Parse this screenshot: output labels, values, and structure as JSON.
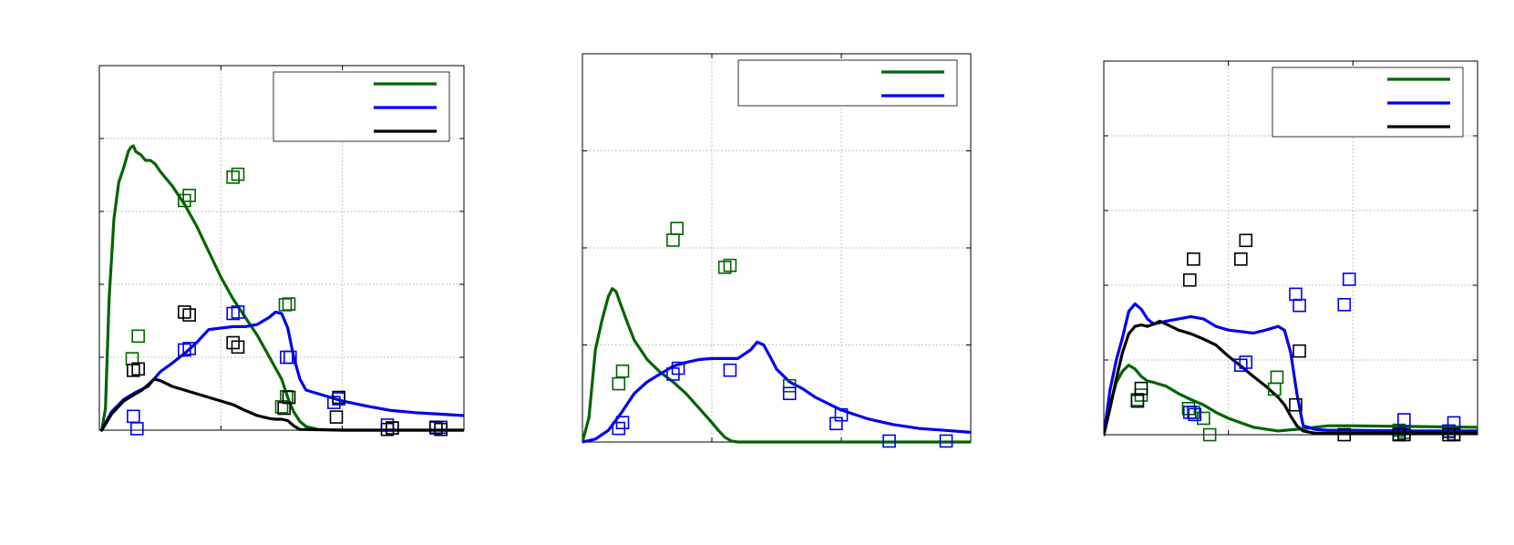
{
  "colors": {
    "green": "#006400",
    "blue": "#0000ee",
    "black": "#000000",
    "grid": "#b0b0b0"
  },
  "chart_data": [
    {
      "type": "line",
      "xlim": [
        0,
        3
      ],
      "ylim": [
        0,
        5
      ],
      "xticks": [
        1,
        2
      ],
      "yticks": [
        1,
        2,
        3,
        4
      ],
      "grid": true,
      "legend": "top-right",
      "series": [
        {
          "color": "green",
          "kind": "line",
          "x": [
            0.02,
            0.05,
            0.08,
            0.12,
            0.16,
            0.2,
            0.24,
            0.26,
            0.28,
            0.3,
            0.34,
            0.38,
            0.42,
            0.46,
            0.5,
            0.55,
            0.6,
            0.7,
            0.8,
            0.9,
            1.0,
            1.1,
            1.2,
            1.3,
            1.35,
            1.4,
            1.45,
            1.5,
            1.53,
            1.56,
            1.6,
            1.65,
            1.7,
            1.8,
            2.0,
            2.5,
            3.0
          ],
          "y": [
            0.0,
            0.3,
            1.8,
            2.9,
            3.4,
            3.6,
            3.83,
            3.88,
            3.9,
            3.82,
            3.78,
            3.7,
            3.7,
            3.65,
            3.55,
            3.45,
            3.35,
            3.1,
            2.8,
            2.45,
            2.1,
            1.8,
            1.55,
            1.3,
            1.15,
            1.0,
            0.85,
            0.7,
            0.55,
            0.4,
            0.25,
            0.12,
            0.05,
            0.01,
            0.0,
            0.0,
            0.0
          ]
        },
        {
          "color": "blue",
          "kind": "line",
          "x": [
            0.02,
            0.1,
            0.2,
            0.3,
            0.4,
            0.5,
            0.6,
            0.7,
            0.8,
            0.9,
            1.0,
            1.1,
            1.2,
            1.3,
            1.4,
            1.45,
            1.5,
            1.55,
            1.6,
            1.65,
            1.7,
            1.8,
            1.9,
            2.0,
            2.2,
            2.4,
            2.6,
            2.8,
            3.0
          ],
          "y": [
            0.0,
            0.25,
            0.42,
            0.52,
            0.6,
            0.8,
            0.92,
            1.05,
            1.2,
            1.38,
            1.4,
            1.42,
            1.42,
            1.45,
            1.55,
            1.62,
            1.6,
            1.4,
            1.0,
            0.7,
            0.55,
            0.5,
            0.45,
            0.4,
            0.33,
            0.27,
            0.24,
            0.22,
            0.2
          ]
        },
        {
          "color": "black",
          "kind": "line",
          "x": [
            0.02,
            0.1,
            0.2,
            0.3,
            0.35,
            0.4,
            0.45,
            0.5,
            0.6,
            0.7,
            0.8,
            0.9,
            1.0,
            1.1,
            1.2,
            1.3,
            1.4,
            1.45,
            1.5,
            1.55,
            1.6,
            1.65,
            2.0,
            2.5,
            3.0
          ],
          "y": [
            0.0,
            0.22,
            0.4,
            0.5,
            0.55,
            0.62,
            0.7,
            0.68,
            0.6,
            0.55,
            0.5,
            0.45,
            0.4,
            0.35,
            0.27,
            0.2,
            0.16,
            0.15,
            0.15,
            0.13,
            0.06,
            0.01,
            0.0,
            0.0,
            0.0
          ]
        },
        {
          "color": "green",
          "kind": "markers",
          "x": [
            0.27,
            0.32,
            0.7,
            0.74,
            1.1,
            1.14,
            1.53,
            1.56,
            1.5,
            1.54
          ],
          "y": [
            0.98,
            1.29,
            3.15,
            3.22,
            3.47,
            3.51,
            1.72,
            1.73,
            0.32,
            0.46
          ]
        },
        {
          "color": "blue",
          "kind": "markers",
          "x": [
            0.28,
            0.31,
            0.7,
            0.74,
            1.1,
            1.14,
            1.54,
            1.57,
            1.93,
            1.97,
            2.37,
            2.41,
            2.77,
            2.81
          ],
          "y": [
            0.19,
            0.02,
            1.1,
            1.12,
            1.6,
            1.62,
            1.0,
            1.0,
            0.38,
            0.43,
            0.07,
            0.03,
            0.03,
            0.04
          ]
        },
        {
          "color": "black",
          "kind": "markers",
          "x": [
            0.28,
            0.32,
            0.7,
            0.74,
            1.1,
            1.14,
            1.52,
            1.56,
            1.95,
            1.97,
            2.37,
            2.41,
            2.77,
            2.81
          ],
          "y": [
            0.82,
            0.84,
            1.62,
            1.58,
            1.2,
            1.14,
            0.3,
            0.45,
            0.18,
            0.45,
            0.01,
            0.03,
            0.04,
            0.01
          ]
        }
      ]
    },
    {
      "type": "line",
      "xlim": [
        0,
        3
      ],
      "ylim": [
        0,
        4
      ],
      "xticks": [
        1,
        2
      ],
      "yticks": [
        1,
        2,
        3
      ],
      "grid": true,
      "legend": "top-right",
      "series": [
        {
          "color": "green",
          "kind": "line",
          "x": [
            0.0,
            0.05,
            0.1,
            0.15,
            0.2,
            0.23,
            0.26,
            0.3,
            0.35,
            0.4,
            0.5,
            0.6,
            0.7,
            0.8,
            0.9,
            1.0,
            1.05,
            1.1,
            1.15,
            1.2,
            1.3,
            1.5,
            2.0,
            3.0
          ],
          "y": [
            0.0,
            0.25,
            0.95,
            1.25,
            1.5,
            1.58,
            1.55,
            1.4,
            1.22,
            1.05,
            0.85,
            0.72,
            0.62,
            0.5,
            0.35,
            0.2,
            0.12,
            0.05,
            0.01,
            0.0,
            0.0,
            0.0,
            0.0,
            0.0
          ]
        },
        {
          "color": "blue",
          "kind": "line",
          "x": [
            0.0,
            0.1,
            0.2,
            0.3,
            0.4,
            0.5,
            0.6,
            0.7,
            0.8,
            0.9,
            1.0,
            1.1,
            1.2,
            1.3,
            1.35,
            1.4,
            1.45,
            1.5,
            1.6,
            1.7,
            1.8,
            2.0,
            2.2,
            2.4,
            2.6,
            2.8,
            3.0
          ],
          "y": [
            0.0,
            0.03,
            0.12,
            0.3,
            0.5,
            0.62,
            0.7,
            0.78,
            0.82,
            0.85,
            0.86,
            0.86,
            0.86,
            0.95,
            1.03,
            1.0,
            0.88,
            0.75,
            0.62,
            0.55,
            0.46,
            0.33,
            0.24,
            0.18,
            0.14,
            0.12,
            0.1
          ]
        },
        {
          "color": "green",
          "kind": "markers",
          "x": [
            0.28,
            0.31,
            0.7,
            0.73,
            1.1,
            1.14,
            1.6
          ],
          "y": [
            0.6,
            0.73,
            2.08,
            2.2,
            1.8,
            1.82,
            0.58
          ]
        },
        {
          "color": "blue",
          "kind": "markers",
          "x": [
            0.28,
            0.31,
            0.7,
            0.74,
            1.14,
            1.6,
            1.96,
            2.0,
            2.37,
            2.81
          ],
          "y": [
            0.14,
            0.2,
            0.7,
            0.76,
            0.74,
            0.5,
            0.19,
            0.28,
            0.01,
            0.01
          ]
        }
      ]
    },
    {
      "type": "line",
      "xlim": [
        0,
        3
      ],
      "ylim": [
        0,
        5
      ],
      "xticks": [
        1,
        2
      ],
      "yticks": [
        1,
        2,
        3,
        4
      ],
      "grid": true,
      "legend": "top-right",
      "series": [
        {
          "color": "green",
          "kind": "line",
          "x": [
            0.0,
            0.05,
            0.1,
            0.15,
            0.2,
            0.25,
            0.3,
            0.35,
            0.4,
            0.5,
            0.6,
            0.7,
            0.8,
            0.9,
            1.0,
            1.2,
            1.4,
            1.6,
            1.8,
            2.0,
            2.5,
            3.0
          ],
          "y": [
            0.0,
            0.4,
            0.7,
            0.85,
            0.93,
            0.88,
            0.78,
            0.72,
            0.7,
            0.65,
            0.55,
            0.47,
            0.4,
            0.3,
            0.22,
            0.1,
            0.05,
            0.08,
            0.12,
            0.12,
            0.11,
            0.1
          ]
        },
        {
          "color": "blue",
          "kind": "line",
          "x": [
            0.0,
            0.05,
            0.1,
            0.15,
            0.2,
            0.25,
            0.3,
            0.35,
            0.4,
            0.5,
            0.6,
            0.7,
            0.8,
            0.9,
            1.0,
            1.1,
            1.2,
            1.3,
            1.4,
            1.45,
            1.5,
            1.55,
            1.6,
            1.7,
            1.8,
            2.0,
            2.5,
            3.0
          ],
          "y": [
            0.0,
            0.6,
            1.0,
            1.3,
            1.65,
            1.75,
            1.68,
            1.55,
            1.48,
            1.52,
            1.55,
            1.58,
            1.55,
            1.45,
            1.4,
            1.38,
            1.36,
            1.4,
            1.45,
            1.4,
            1.1,
            0.55,
            0.12,
            0.07,
            0.06,
            0.06,
            0.05,
            0.05
          ]
        },
        {
          "color": "black",
          "kind": "line",
          "x": [
            0.0,
            0.05,
            0.1,
            0.15,
            0.2,
            0.25,
            0.3,
            0.35,
            0.4,
            0.45,
            0.5,
            0.6,
            0.7,
            0.8,
            0.9,
            1.0,
            1.1,
            1.2,
            1.3,
            1.4,
            1.45,
            1.5,
            1.55,
            1.6,
            1.7,
            1.8,
            2.0,
            2.5,
            3.0
          ],
          "y": [
            0.0,
            0.35,
            0.75,
            1.1,
            1.35,
            1.45,
            1.47,
            1.45,
            1.48,
            1.52,
            1.48,
            1.4,
            1.35,
            1.28,
            1.2,
            1.05,
            0.92,
            0.78,
            0.65,
            0.5,
            0.4,
            0.25,
            0.12,
            0.05,
            0.02,
            0.02,
            0.02,
            0.02,
            0.02
          ]
        },
        {
          "color": "green",
          "kind": "markers",
          "x": [
            0.27,
            0.3,
            0.68,
            0.72,
            0.8,
            0.85,
            1.37,
            1.39,
            2.37,
            2.41,
            2.77,
            2.81
          ],
          "y": [
            0.47,
            0.53,
            0.35,
            0.3,
            0.22,
            0.0,
            0.61,
            0.77,
            0.06,
            0.03,
            0.04,
            0.01
          ]
        },
        {
          "color": "blue",
          "kind": "markers",
          "x": [
            0.69,
            0.73,
            1.1,
            1.14,
            1.54,
            1.57,
            1.93,
            1.97,
            2.37,
            2.41,
            2.77,
            2.81
          ],
          "y": [
            0.3,
            0.27,
            0.93,
            0.97,
            1.88,
            1.73,
            1.74,
            2.08,
            0.01,
            0.2,
            0.05,
            0.16
          ]
        },
        {
          "color": "black",
          "kind": "markers",
          "x": [
            0.27,
            0.3,
            0.69,
            0.72,
            1.1,
            1.14,
            1.54,
            1.57,
            1.93,
            2.37,
            2.41,
            2.77,
            2.81
          ],
          "y": [
            0.45,
            0.62,
            2.07,
            2.35,
            2.35,
            2.6,
            0.4,
            1.12,
            0.0,
            0.0,
            0.0,
            0.0,
            0.0
          ]
        }
      ]
    }
  ]
}
